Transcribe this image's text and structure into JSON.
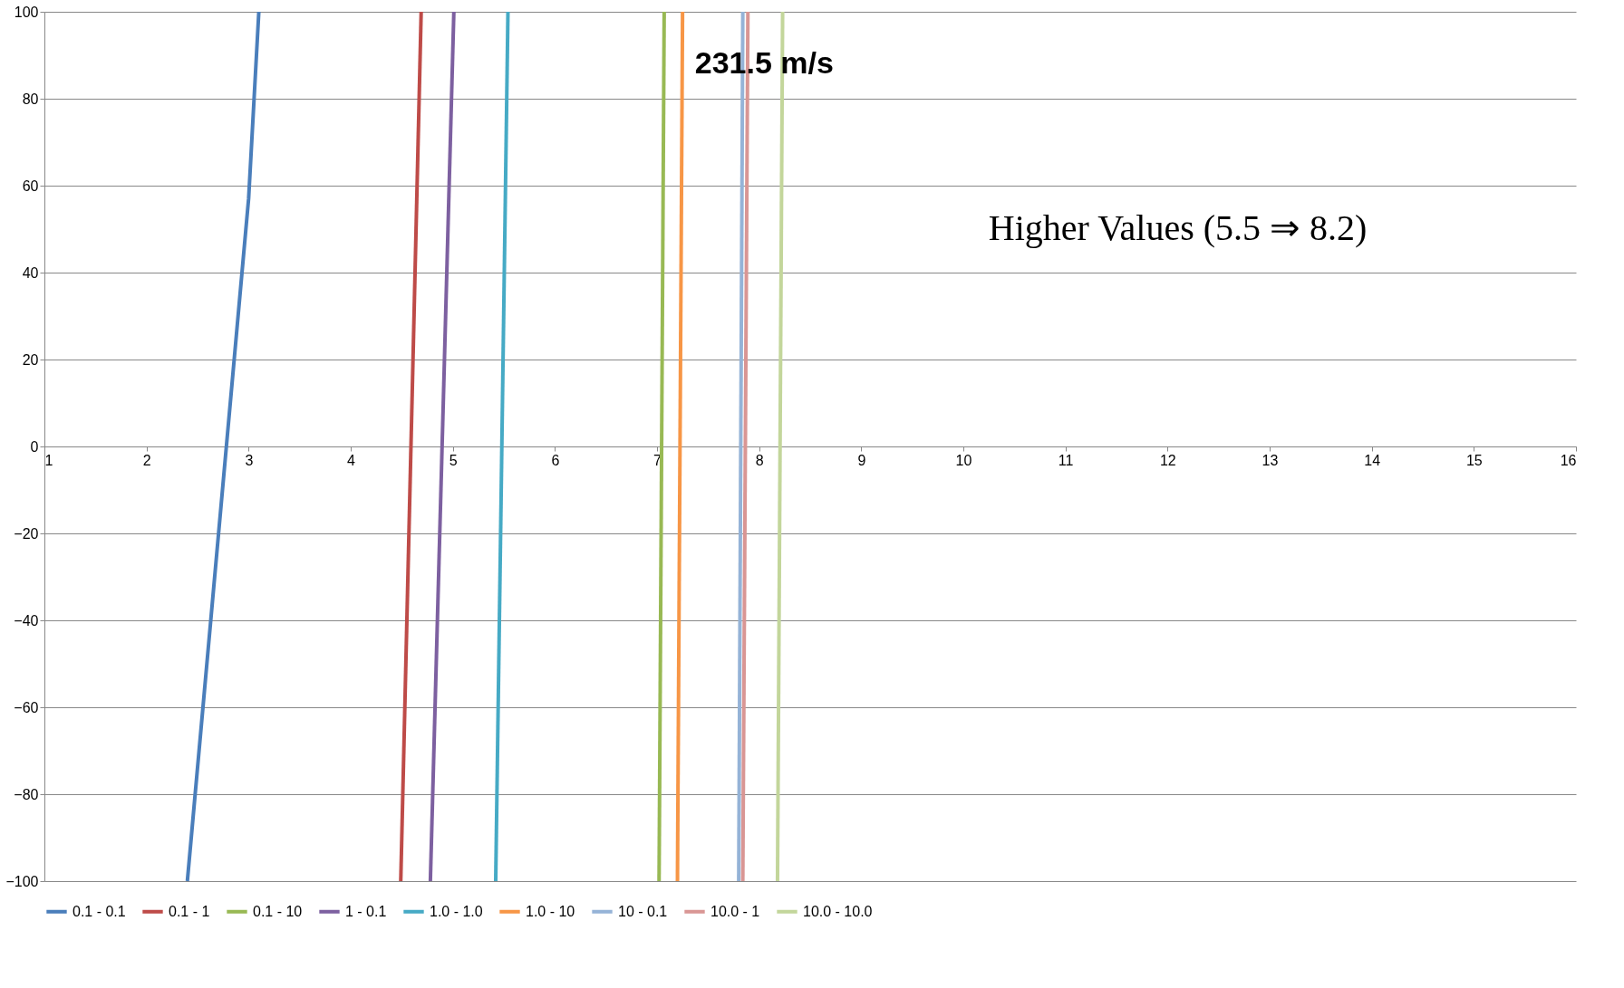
{
  "chart_data": {
    "type": "line",
    "annotations": [
      "231.5 m/s",
      "Higher Values (5.5 ⇒ 8.2)"
    ],
    "xlim": [
      1,
      16
    ],
    "xticks": [
      1,
      2,
      3,
      4,
      5,
      6,
      7,
      8,
      9,
      10,
      11,
      12,
      13,
      14,
      15,
      16
    ],
    "ylim": [
      -100,
      100
    ],
    "yticks": [
      -100,
      -80,
      -60,
      -40,
      -20,
      0,
      20,
      40,
      60,
      80,
      100
    ],
    "grid": "y",
    "legend": "bottom",
    "marker": "none",
    "line_style": "solid",
    "series": [
      {
        "name": "0.1 - 0.1",
        "color": "#4a7ebb",
        "x": [
          2.4,
          3.0,
          3.1
        ],
        "values": [
          -100,
          57,
          100
        ]
      },
      {
        "name": "0.1 - 1",
        "color": "#be4b48",
        "x": [
          4.49,
          4.69
        ],
        "values": [
          -100,
          100
        ]
      },
      {
        "name": "0.1 - 10",
        "color": "#98b954",
        "x": [
          7.02,
          7.07
        ],
        "values": [
          -100,
          100
        ]
      },
      {
        "name": "1 - 0.1",
        "color": "#7d60a0",
        "x": [
          4.78,
          5.01
        ],
        "values": [
          -100,
          100
        ]
      },
      {
        "name": "1.0 - 1.0",
        "color": "#46aac5",
        "x": [
          5.42,
          5.54
        ],
        "values": [
          -100,
          100
        ]
      },
      {
        "name": "1.0 - 10",
        "color": "#f79646",
        "x": [
          7.2,
          7.25
        ],
        "values": [
          -100,
          100
        ]
      },
      {
        "name": "10 - 0.1",
        "color": "#95b3d7",
        "x": [
          7.8,
          7.84
        ],
        "values": [
          -100,
          100
        ]
      },
      {
        "name": "10.0 - 1",
        "color": "#d99694",
        "x": [
          7.84,
          7.89
        ],
        "values": [
          -100,
          100
        ]
      },
      {
        "name": "10.0 - 10.0",
        "color": "#c3d69b",
        "x": [
          8.18,
          8.23
        ],
        "values": [
          -100,
          100
        ]
      }
    ]
  }
}
